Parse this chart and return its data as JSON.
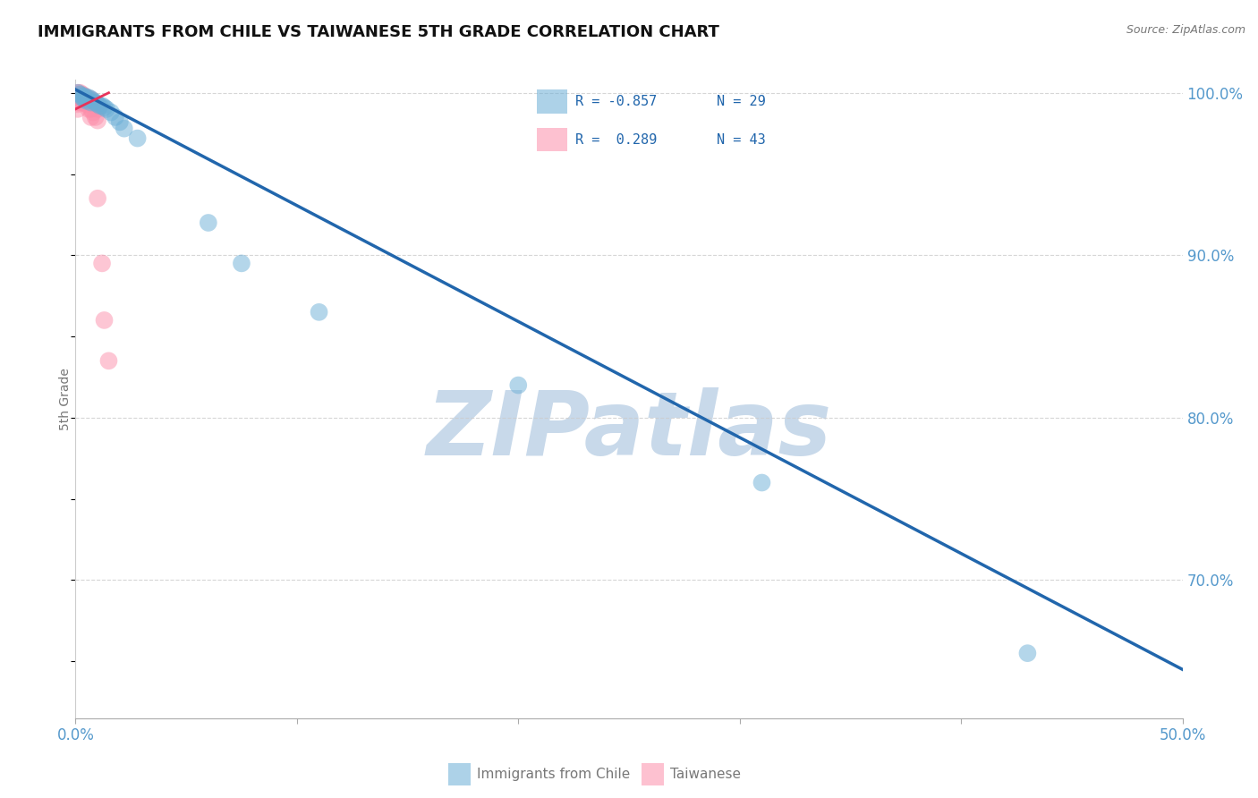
{
  "title": "IMMIGRANTS FROM CHILE VS TAIWANESE 5TH GRADE CORRELATION CHART",
  "source": "Source: ZipAtlas.com",
  "ylabel": "5th Grade",
  "x_label_blue": "Immigrants from Chile",
  "x_label_pink": "Taiwanese",
  "xlim": [
    0.0,
    0.5
  ],
  "ylim": [
    0.615,
    1.008
  ],
  "xticks": [
    0.0,
    0.1,
    0.2,
    0.3,
    0.4,
    0.5
  ],
  "xtick_labels": [
    "0.0%",
    "",
    "",
    "",
    "",
    "50.0%"
  ],
  "yticks_right": [
    1.0,
    0.9,
    0.8,
    0.7
  ],
  "ytick_labels_right": [
    "100.0%",
    "90.0%",
    "80.0%",
    "70.0%"
  ],
  "legend_blue_r": "R = -0.857",
  "legend_blue_n": "N = 29",
  "legend_pink_r": "R =  0.289",
  "legend_pink_n": "N = 43",
  "blue_color": "#6BAED6",
  "pink_color": "#FC8FAB",
  "trendline_color": "#2166AC",
  "pink_trendline_color": "#E8325A",
  "watermark_text": "ZIPatlas",
  "watermark_color": "#C8D9EA",
  "blue_scatter_x": [
    0.001,
    0.002,
    0.003,
    0.003,
    0.004,
    0.004,
    0.005,
    0.005,
    0.006,
    0.007,
    0.007,
    0.008,
    0.009,
    0.01,
    0.011,
    0.012,
    0.013,
    0.014,
    0.016,
    0.018,
    0.02,
    0.022,
    0.028,
    0.06,
    0.075,
    0.11,
    0.2,
    0.31,
    0.43
  ],
  "blue_scatter_y": [
    1.0,
    0.999,
    0.998,
    0.997,
    0.998,
    0.996,
    0.997,
    0.995,
    0.997,
    0.996,
    0.994,
    0.995,
    0.994,
    0.993,
    0.992,
    0.992,
    0.991,
    0.99,
    0.988,
    0.985,
    0.982,
    0.978,
    0.972,
    0.92,
    0.895,
    0.865,
    0.82,
    0.76,
    0.655
  ],
  "pink_scatter_x": [
    0.001,
    0.001,
    0.001,
    0.001,
    0.001,
    0.001,
    0.001,
    0.001,
    0.001,
    0.002,
    0.002,
    0.002,
    0.002,
    0.002,
    0.003,
    0.003,
    0.003,
    0.003,
    0.004,
    0.004,
    0.004,
    0.004,
    0.005,
    0.005,
    0.005,
    0.005,
    0.006,
    0.006,
    0.006,
    0.007,
    0.007,
    0.007,
    0.007,
    0.008,
    0.008,
    0.009,
    0.009,
    0.01,
    0.01,
    0.01,
    0.012,
    0.013,
    0.015
  ],
  "pink_scatter_y": [
    1.0,
    0.999,
    0.998,
    0.997,
    0.996,
    0.995,
    0.994,
    0.993,
    0.99,
    1.0,
    0.999,
    0.998,
    0.996,
    0.994,
    0.999,
    0.998,
    0.997,
    0.995,
    0.998,
    0.997,
    0.996,
    0.994,
    0.997,
    0.996,
    0.995,
    0.993,
    0.996,
    0.995,
    0.99,
    0.996,
    0.995,
    0.99,
    0.985,
    0.994,
    0.988,
    0.992,
    0.985,
    0.99,
    0.983,
    0.935,
    0.895,
    0.86,
    0.835
  ],
  "trendline_x": [
    0.0,
    0.5
  ],
  "trendline_y": [
    1.002,
    0.645
  ],
  "pink_trendline_x": [
    0.0,
    0.015
  ],
  "pink_trendline_y": [
    0.99,
    1.0
  ],
  "grid_color": "#CCCCCC",
  "background_color": "#FFFFFF",
  "grid_yticks": [
    1.0,
    0.9,
    0.8,
    0.7
  ]
}
